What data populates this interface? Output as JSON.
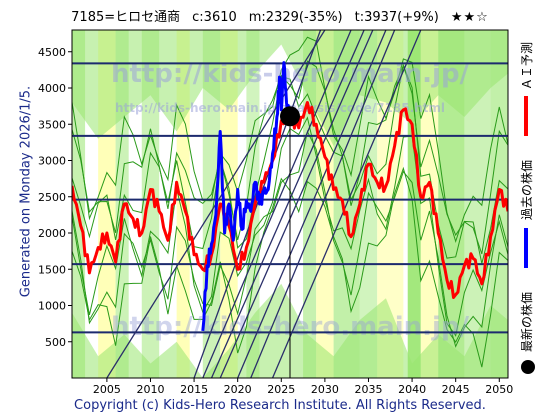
{
  "header": {
    "code_name": "7185=ヒロセ通商",
    "current": "c:3610",
    "min": "m:2329(-35%)",
    "target": "t:3937(+9%)",
    "rating": "★★☆"
  },
  "side_label": "Generated on Monday 2026/1/5.",
  "footer": "Copyright (c) Kids-Hero Research Institute. All Rights Reserved.",
  "watermarks": {
    "main": "http://kids-hero.main.jp/",
    "sub": "http://kids-hero.main.jp/analysis/code/7185.html"
  },
  "legend": {
    "ai_forecast": "ＡＩ予測",
    "past_price": "過去の株価",
    "latest_price": "最新の株価"
  },
  "colors": {
    "forecast": "#ff0000",
    "past": "#0000ff",
    "latest_dot": "#000000",
    "band_green": "#99e66f",
    "band_yellow": "#ffffb0",
    "grid": "#1c2a6e",
    "text": "#1a2a8a"
  },
  "chart_data": {
    "type": "line",
    "title": "",
    "xlabel": "",
    "ylabel": "",
    "xlim": [
      2001,
      2051
    ],
    "ylim": [
      0,
      4800
    ],
    "x_ticks": [
      2005,
      2010,
      2015,
      2020,
      2025,
      2030,
      2035,
      2040,
      2045,
      2050
    ],
    "y_ticks": [
      500,
      1000,
      1500,
      2000,
      2500,
      3000,
      3500,
      4000,
      4500
    ],
    "horizontal_levels": [
      630,
      1570,
      2460,
      3340,
      4340
    ],
    "latest_point": {
      "x": 2026.0,
      "y": 3610
    },
    "series": [
      {
        "name": "ＡＩ予測",
        "color": "#ff0000",
        "x": [
          2001,
          2002,
          2003,
          2004,
          2005,
          2006,
          2007,
          2008,
          2009,
          2010,
          2011,
          2012,
          2013,
          2014,
          2015,
          2016,
          2017,
          2018,
          2019,
          2020,
          2021,
          2022,
          2023,
          2024,
          2025,
          2026,
          2027,
          2028,
          2029,
          2030,
          2031,
          2032,
          2033,
          2034,
          2035,
          2036,
          2037,
          2038,
          2039,
          2040,
          2041,
          2042,
          2043,
          2044,
          2045,
          2046,
          2047,
          2048,
          2049,
          2050,
          2051
        ],
        "y": [
          2650,
          2100,
          1450,
          1800,
          2000,
          1600,
          2400,
          2200,
          2000,
          2600,
          2300,
          1900,
          2700,
          2300,
          1700,
          1500,
          1700,
          2400,
          2100,
          1500,
          1800,
          2400,
          2700,
          3000,
          3550,
          3610,
          3450,
          3800,
          3500,
          3050,
          2600,
          2450,
          1950,
          2400,
          2950,
          2700,
          2650,
          3200,
          3700,
          3500,
          2500,
          2700,
          2000,
          1350,
          1150,
          1550,
          1650,
          1300,
          1950,
          2600,
          2300
        ]
      },
      {
        "name": "過去の株価",
        "color": "#0000ff",
        "x": [
          2016.0,
          2016.5,
          2017.0,
          2017.5,
          2018.0,
          2018.5,
          2019.0,
          2019.5,
          2020.0,
          2020.5,
          2021.0,
          2021.5,
          2022.0,
          2022.5,
          2023.0,
          2023.5,
          2024.0,
          2024.5,
          2024.8,
          2025.0,
          2025.3,
          2025.6,
          2026.0
        ],
        "y": [
          650,
          1550,
          1850,
          2250,
          3400,
          2000,
          2400,
          1900,
          2600,
          2050,
          2450,
          2300,
          2700,
          2400,
          2550,
          2600,
          3100,
          3600,
          4150,
          3700,
          4350,
          3800,
          3610
        ]
      }
    ]
  }
}
